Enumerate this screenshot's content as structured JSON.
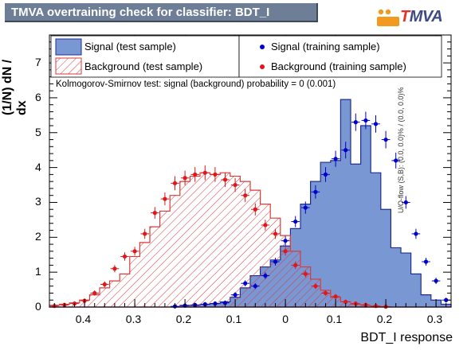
{
  "title": "TMVA overtraining check for classifier: BDT_I",
  "logo": {
    "t": "T",
    "rest": "MVA"
  },
  "ylabel": "(1/N) dN / dx",
  "xlabel": "BDT_I response",
  "uoflow": "U/O-flow (S,B): (0.0, 0.0)% / (0.0, 0.0)%",
  "ks_text": "Kolmogorov-Smirnov test: signal (background) probability =     0 (0.001)",
  "legend": {
    "sig_test": "Signal (test sample)",
    "bkg_test": "Background (test sample)",
    "sig_train": "Signal (training sample)",
    "bkg_train": "Background (training sample)"
  },
  "colors": {
    "signal_fill": "#7997d3",
    "signal_line": "#1f2f8f",
    "bkg_line": "#d93a3a",
    "train_sig": "#0000cc",
    "train_bkg": "#e0161a"
  },
  "chart_data": {
    "type": "histogram",
    "xlim": [
      -0.47,
      0.33
    ],
    "ylim": [
      0,
      7.8
    ],
    "x_ticks": [
      "0.4",
      "0.3",
      "0.2",
      "0.1",
      "0",
      "0.1",
      "0.2",
      "0.3"
    ],
    "x_tick_values": [
      -0.4,
      -0.3,
      -0.2,
      -0.1,
      0,
      0.1,
      0.2,
      0.3
    ],
    "y_ticks": [
      0,
      1,
      2,
      3,
      4,
      5,
      6,
      7
    ],
    "bin_width": 0.02,
    "bin_start": -0.47,
    "series": [
      {
        "name": "Signal (test sample)",
        "style": "filled",
        "values": [
          0,
          0,
          0,
          0,
          0,
          0,
          0,
          0,
          0,
          0,
          0,
          0,
          0,
          0.05,
          0.05,
          0.08,
          0.1,
          0.15,
          0.28,
          0.55,
          0.9,
          1.15,
          1.35,
          1.75,
          2.25,
          2.95,
          3.6,
          4.15,
          4.2,
          5.95,
          4.1,
          5.2,
          3.85,
          2.8,
          1.7,
          1.55,
          0.95,
          0.35,
          0.2,
          0.08
        ]
      },
      {
        "name": "Background (test sample)",
        "style": "hatched",
        "values": [
          0.05,
          0.08,
          0.12,
          0.2,
          0.35,
          0.55,
          0.75,
          0.95,
          1.45,
          1.85,
          2.3,
          2.75,
          3.2,
          3.6,
          3.75,
          3.85,
          3.8,
          3.85,
          3.75,
          3.6,
          3.35,
          2.95,
          2.55,
          2.05,
          1.6,
          1.15,
          0.8,
          0.48,
          0.28,
          0.15,
          0.08,
          0.05,
          0.02,
          0.01,
          0,
          0,
          0,
          0,
          0,
          0
        ]
      },
      {
        "name": "Signal (training sample)",
        "style": "points",
        "values": [
          0,
          0,
          0,
          0,
          0,
          0,
          0,
          0,
          0,
          0,
          0,
          0,
          0.02,
          0.04,
          0.06,
          0.08,
          0.1,
          0.12,
          0.35,
          0.68,
          0.6,
          0.9,
          1.3,
          1.9,
          2.45,
          2.85,
          3.3,
          3.8,
          4.25,
          4.5,
          5.3,
          5.35,
          5.25,
          4.8,
          4.2,
          3,
          2.1,
          1.3,
          0.75,
          0.2
        ]
      },
      {
        "name": "Background (training sample)",
        "style": "points",
        "values": [
          0.03,
          0.06,
          0.1,
          0.18,
          0.4,
          0.65,
          1.1,
          1.45,
          1.6,
          2.1,
          2.7,
          3.1,
          3.55,
          3.7,
          3.8,
          3.85,
          3.8,
          3.65,
          3.5,
          3.2,
          2.8,
          2.35,
          2.1,
          1.6,
          1.2,
          0.95,
          0.6,
          0.4,
          0.3,
          0.15,
          0.1,
          0.06,
          0.03,
          0.01,
          0,
          0,
          0,
          0,
          0,
          0
        ]
      }
    ]
  }
}
